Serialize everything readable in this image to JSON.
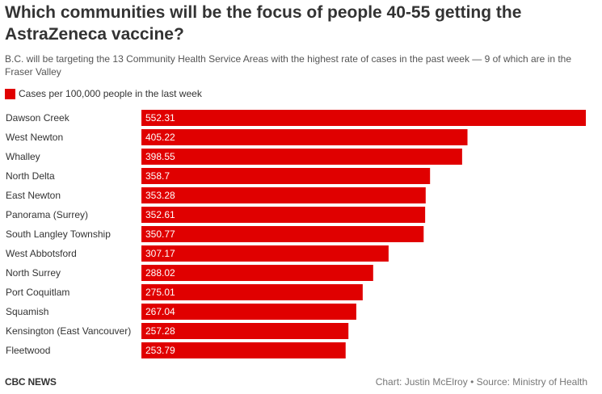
{
  "chart_data": {
    "type": "bar",
    "orientation": "horizontal",
    "title": "Which communities will be the focus of people 40-55 getting the AstraZeneca vaccine?",
    "subtitle": "B.C. will be targeting the 13 Community Health Service Areas with the highest rate of cases in the past week — 9 of which are in the Fraser Valley",
    "legend": "Cases per 100,000 people in the last week",
    "categories": [
      "Dawson Creek",
      "West Newton",
      "Whalley",
      "North Delta",
      "East Newton",
      "Panorama (Surrey)",
      "South Langley Township",
      "West Abbotsford",
      "North Surrey",
      "Port Coquitlam",
      "Squamish",
      "Kensington (East Vancouver)",
      "Fleetwood"
    ],
    "values": [
      552.31,
      405.22,
      398.55,
      358.7,
      353.28,
      352.61,
      350.77,
      307.17,
      288.02,
      275.01,
      267.04,
      257.28,
      253.79
    ],
    "value_labels": [
      "552.31",
      "405.22",
      "398.55",
      "358.7",
      "353.28",
      "352.61",
      "350.77",
      "307.17",
      "288.02",
      "275.01",
      "267.04",
      "257.28",
      "253.79"
    ],
    "xlim": [
      0,
      552.31
    ],
    "grid": false
  },
  "colors": {
    "bar": "#e00000",
    "label_on_bar": "#ffffff",
    "category_text": "#333333"
  },
  "footer": {
    "brand": "CBC NEWS",
    "credit": "Chart: Justin McElroy • Source: Ministry of Health"
  }
}
